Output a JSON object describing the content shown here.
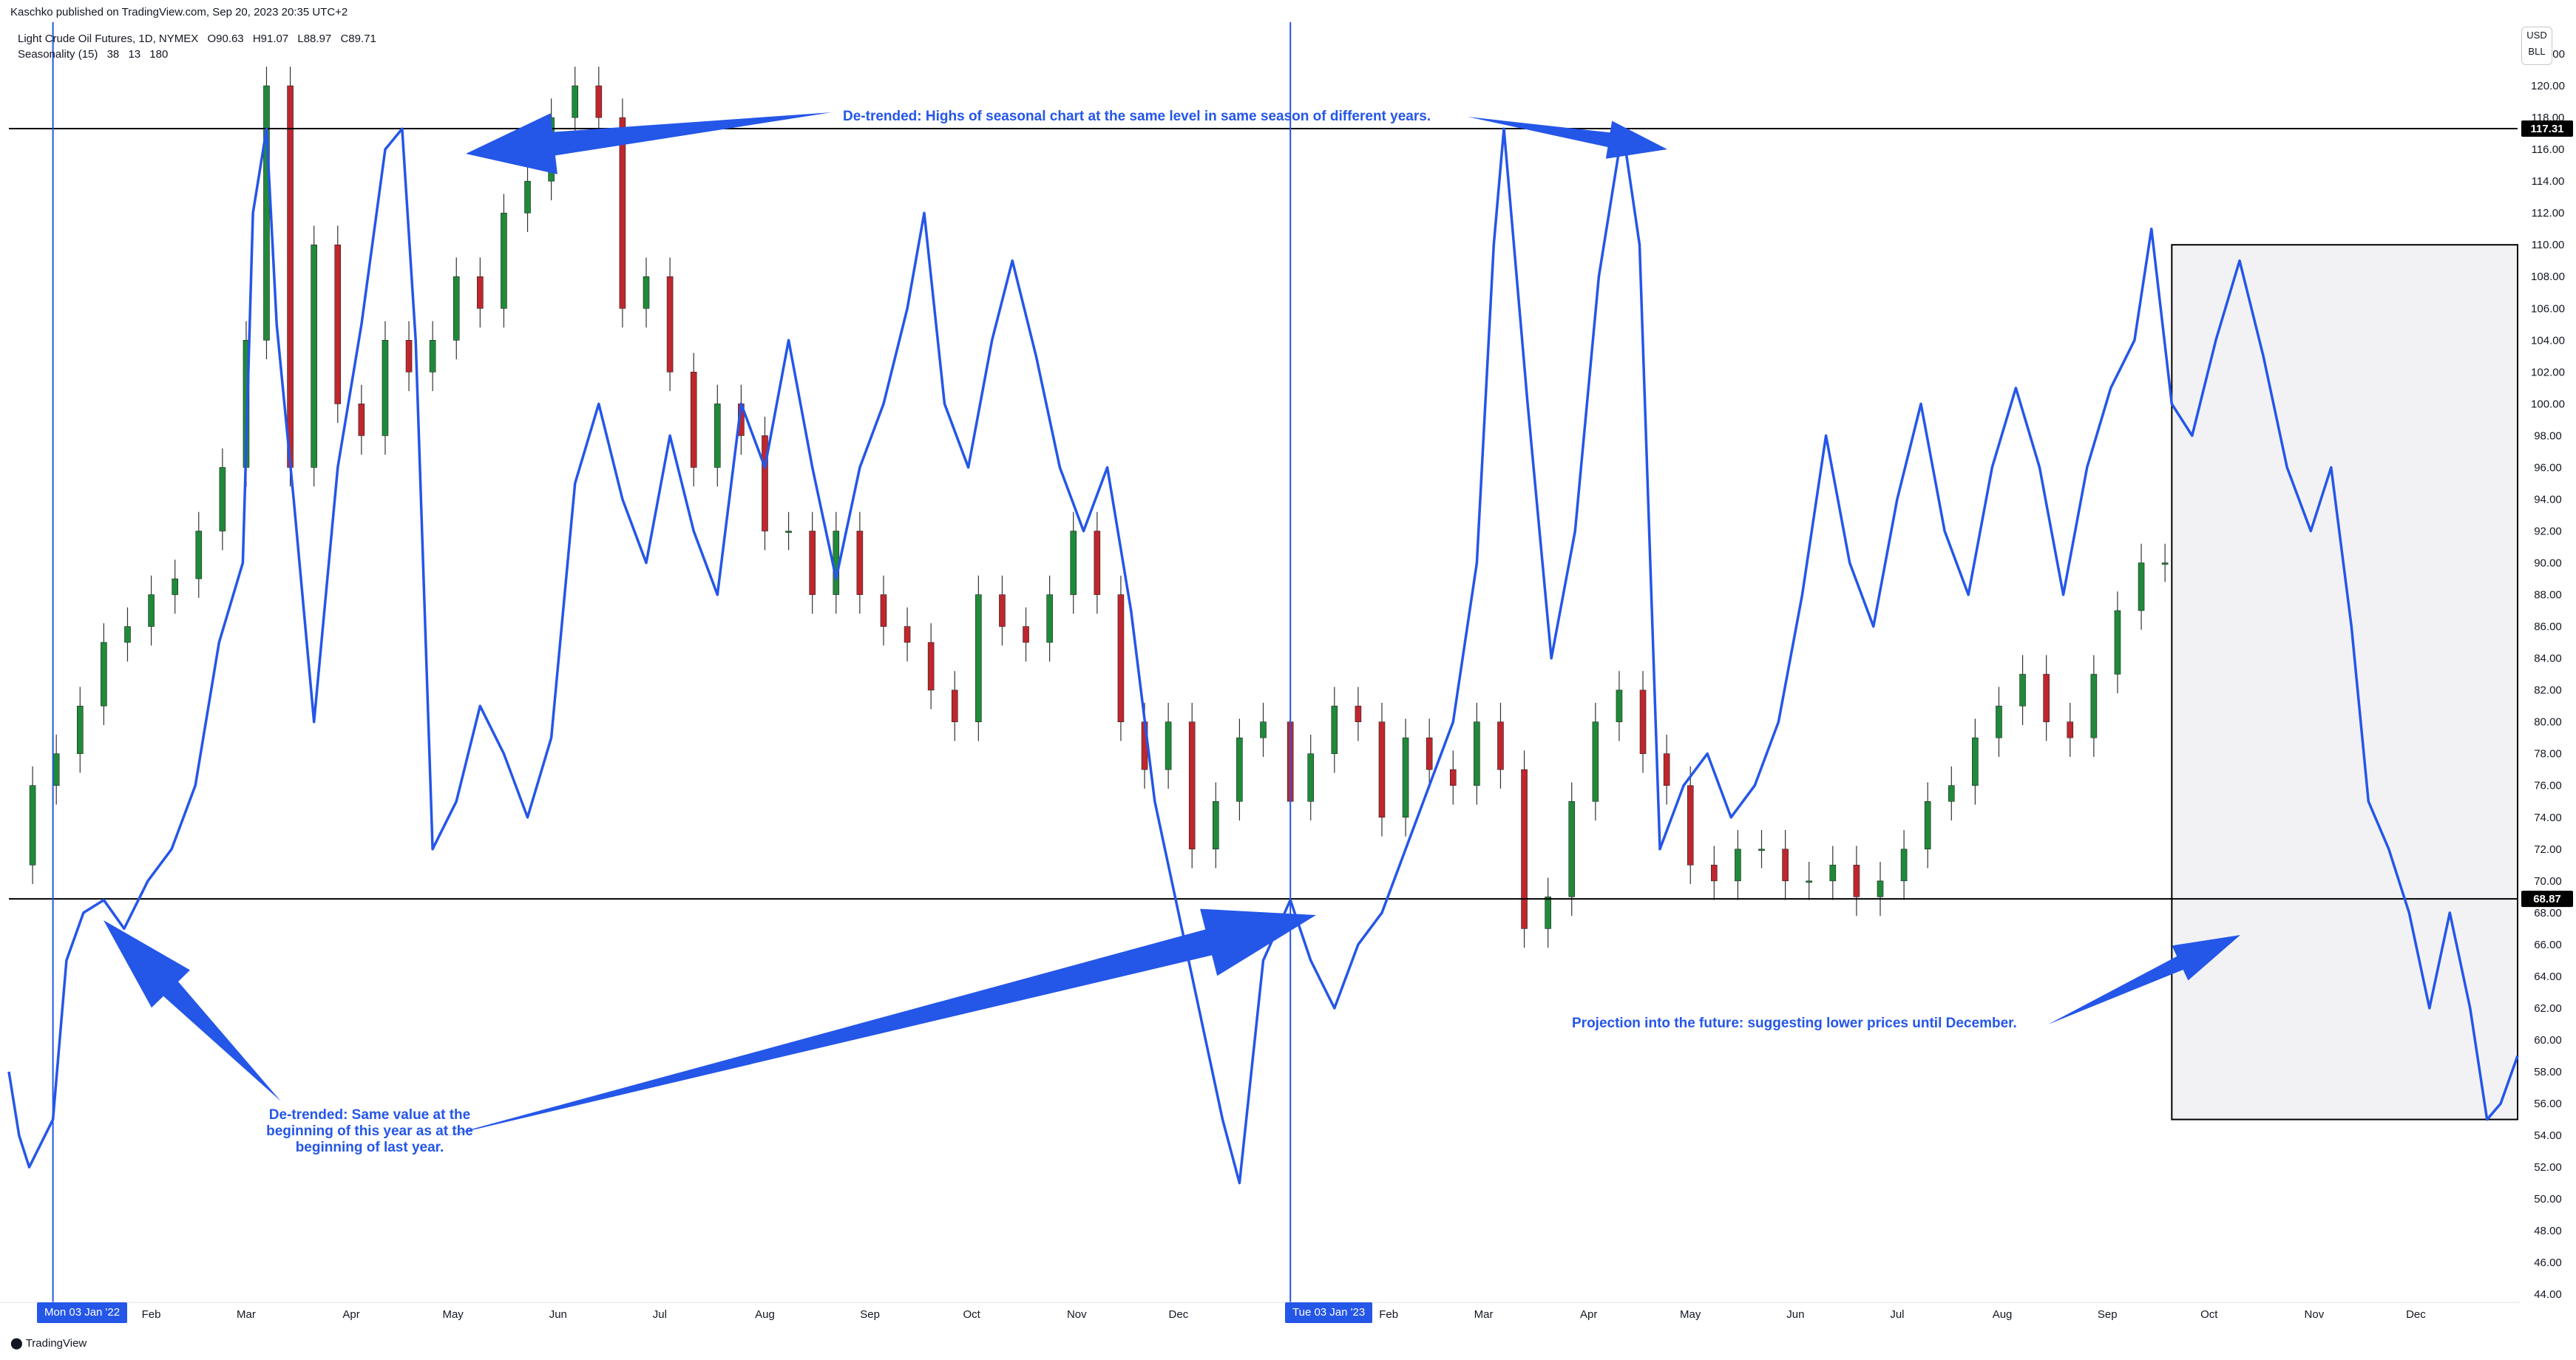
{
  "header": {
    "published": "Kaschko published on TradingView.com, Sep 20, 2023 20:35 UTC+2"
  },
  "legend": {
    "instrument": "Light Crude Oil Futures, 1D, NYMEX",
    "ohlc": {
      "open": "O90.63",
      "high": "H91.07",
      "low": "L88.97",
      "close": "C89.71"
    },
    "indicator": "Seasonality (15)",
    "indicator_params": [
      "38",
      "13",
      "180"
    ]
  },
  "currency": {
    "line1": "USD",
    "line2": "BLL"
  },
  "annotations": {
    "highs": "De-trended: Highs of seasonal chart at the same level in same season of different years.",
    "same_value": "De-trended: Same value at the beginning of this year as at the beginning of last year.",
    "projection": "Projection into the future: suggesting lower prices until December."
  },
  "date_badges": [
    "Mon 03 Jan '22",
    "Tue 03 Jan '23"
  ],
  "footer": {
    "brand": "TradingView"
  },
  "colors": {
    "seasonal_line": "#2456e8",
    "up_candle": "#1f8a3a",
    "down_candle": "#c0262d",
    "horizontal_lines": "#000000",
    "projection_box": "#f2f2f5"
  },
  "icons": [
    "tradingview-logo-icon",
    "arrow-icon"
  ],
  "chart_data": {
    "type": "line",
    "y_axis_ticks": [
      44,
      46,
      48,
      50,
      52,
      54,
      56,
      58,
      60,
      62,
      64,
      66,
      68,
      70,
      72,
      74,
      76,
      78,
      80,
      82,
      84,
      86,
      88,
      90,
      92,
      94,
      96,
      98,
      100,
      102,
      104,
      106,
      108,
      110,
      112,
      114,
      116,
      118,
      120,
      122
    ],
    "ylim": [
      43.5,
      124
    ],
    "x_axis_labels": [
      "Feb",
      "Mar",
      "Apr",
      "May",
      "Jun",
      "Jul",
      "Aug",
      "Sep",
      "Oct",
      "Nov",
      "Dec",
      "Feb",
      "Mar",
      "Apr",
      "May",
      "Jun",
      "Jul",
      "Aug",
      "Sep",
      "Oct",
      "Nov",
      "Dec"
    ],
    "horizontal_levels": [
      {
        "value": 117.31,
        "label": "117.31"
      },
      {
        "value": 68.87,
        "label": "68.87"
      }
    ],
    "vertical_markers": [
      "2022-01-03",
      "2023-01-03"
    ],
    "x_range": [
      "2021-12-21",
      "2023-12-31"
    ],
    "seasonality": {
      "points": [
        [
          "2021-12-21",
          58
        ],
        [
          "2021-12-24",
          54
        ],
        [
          "2021-12-27",
          52
        ],
        [
          "2022-01-03",
          55
        ],
        [
          "2022-01-07",
          65
        ],
        [
          "2022-01-12",
          68
        ],
        [
          "2022-01-18",
          68.8
        ],
        [
          "2022-01-24",
          67
        ],
        [
          "2022-01-31",
          70
        ],
        [
          "2022-02-07",
          72
        ],
        [
          "2022-02-14",
          76
        ],
        [
          "2022-02-21",
          85
        ],
        [
          "2022-02-28",
          90
        ],
        [
          "2022-03-03",
          112
        ],
        [
          "2022-03-07",
          117.3
        ],
        [
          "2022-03-10",
          105
        ],
        [
          "2022-03-15",
          94
        ],
        [
          "2022-03-21",
          80
        ],
        [
          "2022-03-28",
          96
        ],
        [
          "2022-04-04",
          105
        ],
        [
          "2022-04-11",
          116
        ],
        [
          "2022-04-16",
          117.3
        ],
        [
          "2022-04-20",
          104
        ],
        [
          "2022-04-25",
          72
        ],
        [
          "2022-05-02",
          75
        ],
        [
          "2022-05-09",
          81
        ],
        [
          "2022-05-16",
          78
        ],
        [
          "2022-05-23",
          74
        ],
        [
          "2022-05-30",
          79
        ],
        [
          "2022-06-06",
          95
        ],
        [
          "2022-06-13",
          100
        ],
        [
          "2022-06-20",
          94
        ],
        [
          "2022-06-27",
          90
        ],
        [
          "2022-07-04",
          98
        ],
        [
          "2022-07-11",
          92
        ],
        [
          "2022-07-18",
          88
        ],
        [
          "2022-07-25",
          100
        ],
        [
          "2022-08-01",
          96
        ],
        [
          "2022-08-08",
          104
        ],
        [
          "2022-08-15",
          96
        ],
        [
          "2022-08-22",
          89
        ],
        [
          "2022-08-29",
          96
        ],
        [
          "2022-09-05",
          100
        ],
        [
          "2022-09-12",
          106
        ],
        [
          "2022-09-17",
          112
        ],
        [
          "2022-09-23",
          100
        ],
        [
          "2022-09-30",
          96
        ],
        [
          "2022-10-07",
          104
        ],
        [
          "2022-10-13",
          109
        ],
        [
          "2022-10-20",
          103
        ],
        [
          "2022-10-27",
          96
        ],
        [
          "2022-11-03",
          92
        ],
        [
          "2022-11-10",
          96
        ],
        [
          "2022-11-17",
          87
        ],
        [
          "2022-11-24",
          75
        ],
        [
          "2022-12-01",
          68
        ],
        [
          "2022-12-07",
          62
        ],
        [
          "2022-12-14",
          55
        ],
        [
          "2022-12-19",
          51
        ],
        [
          "2022-12-26",
          65
        ],
        [
          "2023-01-03",
          68.8
        ],
        [
          "2023-01-09",
          65
        ],
        [
          "2023-01-16",
          62
        ],
        [
          "2023-01-23",
          66
        ],
        [
          "2023-01-30",
          68
        ],
        [
          "2023-02-06",
          72
        ],
        [
          "2023-02-13",
          76
        ],
        [
          "2023-02-20",
          80
        ],
        [
          "2023-02-27",
          90
        ],
        [
          "2023-03-04",
          110
        ],
        [
          "2023-03-07",
          117.3
        ],
        [
          "2023-03-14",
          100
        ],
        [
          "2023-03-21",
          84
        ],
        [
          "2023-03-28",
          92
        ],
        [
          "2023-04-04",
          108
        ],
        [
          "2023-04-11",
          117.3
        ],
        [
          "2023-04-16",
          110
        ],
        [
          "2023-04-22",
          72
        ],
        [
          "2023-04-29",
          76
        ],
        [
          "2023-05-06",
          78
        ],
        [
          "2023-05-13",
          74
        ],
        [
          "2023-05-20",
          76
        ],
        [
          "2023-05-27",
          80
        ],
        [
          "2023-06-03",
          88
        ],
        [
          "2023-06-10",
          98
        ],
        [
          "2023-06-17",
          90
        ],
        [
          "2023-06-24",
          86
        ],
        [
          "2023-07-01",
          94
        ],
        [
          "2023-07-08",
          100
        ],
        [
          "2023-07-15",
          92
        ],
        [
          "2023-07-22",
          88
        ],
        [
          "2023-07-29",
          96
        ],
        [
          "2023-08-05",
          101
        ],
        [
          "2023-08-12",
          96
        ],
        [
          "2023-08-19",
          88
        ],
        [
          "2023-08-26",
          96
        ],
        [
          "2023-09-02",
          101
        ],
        [
          "2023-09-09",
          104
        ],
        [
          "2023-09-14",
          111
        ],
        [
          "2023-09-20",
          100
        ],
        [
          "2023-09-26",
          98
        ],
        [
          "2023-10-03",
          104
        ],
        [
          "2023-10-10",
          109
        ],
        [
          "2023-10-17",
          103
        ],
        [
          "2023-10-24",
          96
        ],
        [
          "2023-10-31",
          92
        ],
        [
          "2023-11-06",
          96
        ],
        [
          "2023-11-12",
          86
        ],
        [
          "2023-11-17",
          75
        ],
        [
          "2023-11-23",
          72
        ],
        [
          "2023-11-29",
          68
        ],
        [
          "2023-12-05",
          62
        ],
        [
          "2023-12-11",
          68
        ],
        [
          "2023-12-17",
          62
        ],
        [
          "2023-12-22",
          55
        ],
        [
          "2023-12-26",
          56
        ],
        [
          "2023-12-31",
          59
        ]
      ]
    },
    "price_candles_close": [
      [
        "2021-12-21",
        71
      ],
      [
        "2021-12-28",
        76
      ],
      [
        "2022-01-04",
        78
      ],
      [
        "2022-01-11",
        81
      ],
      [
        "2022-01-18",
        85
      ],
      [
        "2022-01-25",
        86
      ],
      [
        "2022-02-01",
        88
      ],
      [
        "2022-02-08",
        89
      ],
      [
        "2022-02-15",
        92
      ],
      [
        "2022-02-22",
        96
      ],
      [
        "2022-03-01",
        104
      ],
      [
        "2022-03-07",
        120
      ],
      [
        "2022-03-14",
        96
      ],
      [
        "2022-03-21",
        110
      ],
      [
        "2022-03-28",
        100
      ],
      [
        "2022-04-04",
        98
      ],
      [
        "2022-04-11",
        104
      ],
      [
        "2022-04-18",
        102
      ],
      [
        "2022-04-25",
        104
      ],
      [
        "2022-05-02",
        108
      ],
      [
        "2022-05-09",
        106
      ],
      [
        "2022-05-16",
        112
      ],
      [
        "2022-05-23",
        114
      ],
      [
        "2022-05-30",
        118
      ],
      [
        "2022-06-06",
        120
      ],
      [
        "2022-06-13",
        118
      ],
      [
        "2022-06-20",
        106
      ],
      [
        "2022-06-27",
        108
      ],
      [
        "2022-07-04",
        102
      ],
      [
        "2022-07-11",
        96
      ],
      [
        "2022-07-18",
        100
      ],
      [
        "2022-07-25",
        98
      ],
      [
        "2022-08-01",
        92
      ],
      [
        "2022-08-08",
        92
      ],
      [
        "2022-08-15",
        88
      ],
      [
        "2022-08-22",
        92
      ],
      [
        "2022-08-29",
        88
      ],
      [
        "2022-09-05",
        86
      ],
      [
        "2022-09-12",
        85
      ],
      [
        "2022-09-19",
        82
      ],
      [
        "2022-09-26",
        80
      ],
      [
        "2022-10-03",
        88
      ],
      [
        "2022-10-10",
        86
      ],
      [
        "2022-10-17",
        85
      ],
      [
        "2022-10-24",
        88
      ],
      [
        "2022-10-31",
        92
      ],
      [
        "2022-11-07",
        88
      ],
      [
        "2022-11-14",
        80
      ],
      [
        "2022-11-21",
        77
      ],
      [
        "2022-11-28",
        80
      ],
      [
        "2022-12-05",
        72
      ],
      [
        "2022-12-12",
        75
      ],
      [
        "2022-12-19",
        79
      ],
      [
        "2022-12-26",
        80
      ],
      [
        "2023-01-03",
        75
      ],
      [
        "2023-01-09",
        78
      ],
      [
        "2023-01-16",
        81
      ],
      [
        "2023-01-23",
        80
      ],
      [
        "2023-01-30",
        74
      ],
      [
        "2023-02-06",
        79
      ],
      [
        "2023-02-13",
        77
      ],
      [
        "2023-02-20",
        76
      ],
      [
        "2023-02-27",
        80
      ],
      [
        "2023-03-06",
        77
      ],
      [
        "2023-03-13",
        67
      ],
      [
        "2023-03-20",
        69
      ],
      [
        "2023-03-27",
        75
      ],
      [
        "2023-04-03",
        80
      ],
      [
        "2023-04-10",
        82
      ],
      [
        "2023-04-17",
        78
      ],
      [
        "2023-04-24",
        76
      ],
      [
        "2023-05-01",
        71
      ],
      [
        "2023-05-08",
        70
      ],
      [
        "2023-05-15",
        72
      ],
      [
        "2023-05-22",
        72
      ],
      [
        "2023-05-29",
        70
      ],
      [
        "2023-06-05",
        70
      ],
      [
        "2023-06-12",
        71
      ],
      [
        "2023-06-19",
        69
      ],
      [
        "2023-06-26",
        70
      ],
      [
        "2023-07-03",
        72
      ],
      [
        "2023-07-10",
        75
      ],
      [
        "2023-07-17",
        76
      ],
      [
        "2023-07-24",
        79
      ],
      [
        "2023-07-31",
        81
      ],
      [
        "2023-08-07",
        83
      ],
      [
        "2023-08-14",
        80
      ],
      [
        "2023-08-21",
        79
      ],
      [
        "2023-08-28",
        83
      ],
      [
        "2023-09-04",
        87
      ],
      [
        "2023-09-11",
        90
      ],
      [
        "2023-09-18",
        90
      ]
    ],
    "projection_box": {
      "x0": "2023-09-20",
      "x1": "2023-12-31",
      "y0": 55,
      "y1": 110
    }
  }
}
